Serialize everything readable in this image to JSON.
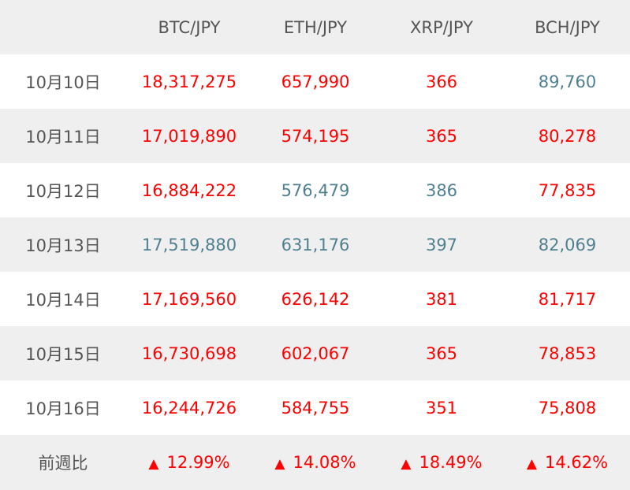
{
  "columns": [
    "",
    "BTC/JPY",
    "ETH/JPY",
    "XRP/JPY",
    "BCH/JPY"
  ],
  "rows": [
    {
      "date": "10月10日",
      "values": [
        "18,317,275",
        "657,990",
        "366",
        "89,760"
      ],
      "trend": [
        "up",
        "up",
        "up",
        "down"
      ]
    },
    {
      "date": "10月11日",
      "values": [
        "17,019,890",
        "574,195",
        "365",
        "80,278"
      ],
      "trend": [
        "up",
        "up",
        "up",
        "up"
      ]
    },
    {
      "date": "10月12日",
      "values": [
        "16,884,222",
        "576,479",
        "386",
        "77,835"
      ],
      "trend": [
        "up",
        "down",
        "down",
        "up"
      ]
    },
    {
      "date": "10月13日",
      "values": [
        "17,519,880",
        "631,176",
        "397",
        "82,069"
      ],
      "trend": [
        "down",
        "down",
        "down",
        "down"
      ]
    },
    {
      "date": "10月14日",
      "values": [
        "17,169,560",
        "626,142",
        "381",
        "81,717"
      ],
      "trend": [
        "up",
        "up",
        "up",
        "up"
      ]
    },
    {
      "date": "10月15日",
      "values": [
        "16,730,698",
        "602,067",
        "365",
        "78,853"
      ],
      "trend": [
        "up",
        "up",
        "up",
        "up"
      ]
    },
    {
      "date": "10月16日",
      "values": [
        "16,244,726",
        "584,755",
        "351",
        "75,808"
      ],
      "trend": [
        "up",
        "up",
        "up",
        "up"
      ]
    }
  ],
  "footer": {
    "label": "前週比",
    "arrow": "▲",
    "changes": [
      "12.99%",
      "14.08%",
      "18.49%",
      "14.62%"
    ]
  },
  "colors": {
    "up": "#ff0000",
    "down": "#4f8090",
    "header_bg": "#efefef",
    "label_text": "#555555"
  },
  "icons": {
    "change_indicator": "up-triangle-icon"
  }
}
